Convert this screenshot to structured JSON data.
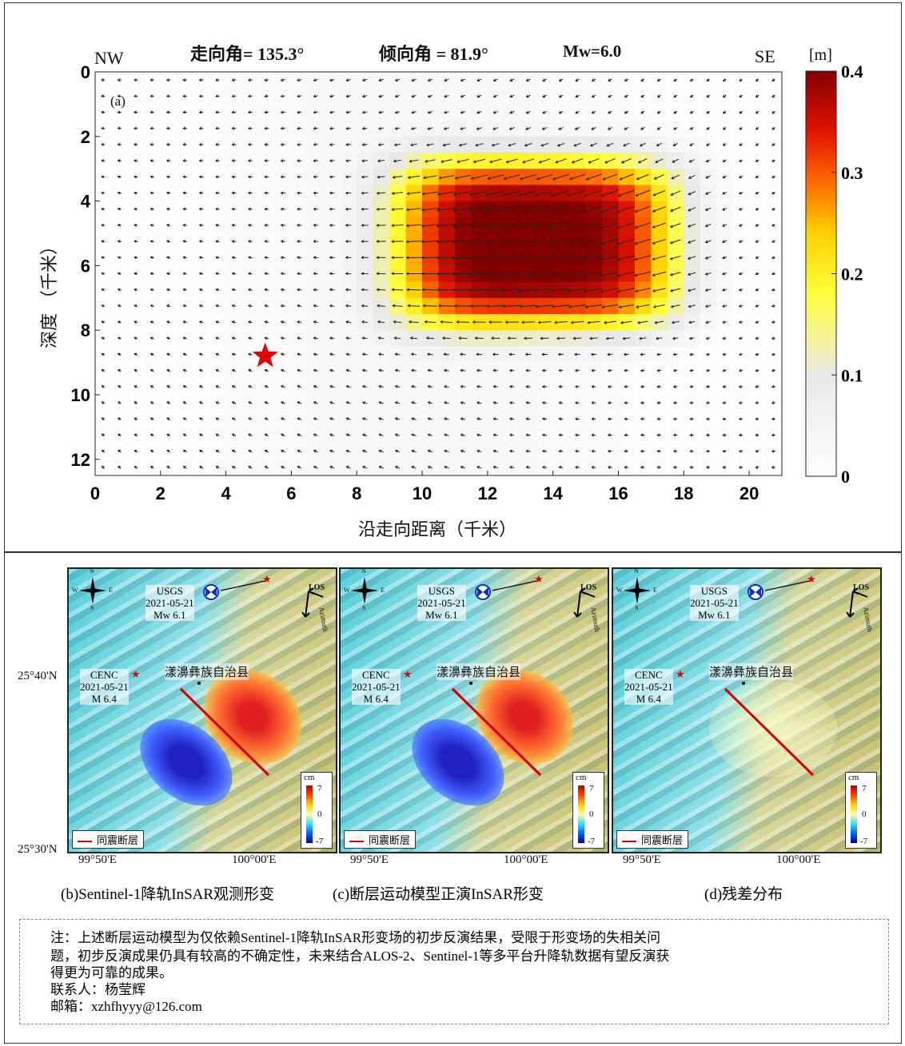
{
  "chart_data": {
    "type": "heatmap",
    "panel_label": "(a)",
    "title_items": [
      "走向角= 135.3°",
      "倾向角 = 81.9°",
      "Mw=6.0"
    ],
    "left_label": "NW",
    "right_label": "SE",
    "xlabel": "沿走向距离（千米）",
    "ylabel": "深度 （千米）",
    "xlim": [
      0,
      21
    ],
    "ylim": [
      12.5,
      0
    ],
    "xticks": [
      "0",
      "2",
      "4",
      "6",
      "8",
      "10",
      "12",
      "14",
      "16",
      "18",
      "20"
    ],
    "yticks": [
      "0",
      "2",
      "4",
      "6",
      "8",
      "10",
      "12"
    ],
    "cell_size_km": 0.5,
    "slip_model": {
      "peak_m": 0.39,
      "center_x_km": 13.5,
      "center_depth_km": 5.3,
      "sigma_x_km": 3.6,
      "sigma_depth_km": 2.2,
      "rake_deg": 190
    },
    "hypocenter": {
      "x_km": 5.2,
      "depth_km": 8.8
    },
    "colorbar": {
      "unit": "[m]",
      "min": 0,
      "max": 0.4,
      "ticks": [
        "0",
        "0.1",
        "0.2",
        "0.3",
        "0.4"
      ]
    }
  },
  "maps": [
    {
      "usgs": [
        "USGS",
        "2021-05-21",
        "Mw 6.1"
      ],
      "cenc": [
        "CENC",
        "2021-05-21",
        "M 6.4"
      ],
      "town": "漾濞彝族自治县",
      "caption": "(b)Sentinel-1降轨InSAR观测形变",
      "type": "obs"
    },
    {
      "usgs": [
        "USGS",
        "2021-05-21",
        "Mw 6.1"
      ],
      "cenc": [
        "CENC",
        "2021-05-21",
        "M 6.4"
      ],
      "town": "漾濞彝族自治县",
      "caption": "(c)断层运动模型正演InSAR形变",
      "type": "model"
    },
    {
      "usgs": [
        "USGS",
        "2021-05-21",
        "Mw 6.1"
      ],
      "cenc": [
        "CENC",
        "2021-05-21",
        "M 6.4"
      ],
      "town": "漾濞彝族自治县",
      "caption": "(d)残差分布",
      "type": "res"
    }
  ],
  "map_common": {
    "compass": [
      "N",
      "S",
      "W",
      "E"
    ],
    "los": "LOS",
    "azimuth": "Azimuth",
    "cb_unit": "cm",
    "cb_ticks": [
      "7",
      "0",
      "-7"
    ],
    "legend": "同震断层",
    "lat_ticks": [
      "25°40'N",
      "25°30'N"
    ],
    "lon_ticks": [
      "99°50'E",
      "100°00'E"
    ]
  },
  "note": {
    "lines": [
      "注：上述断层运动模型为仅依赖Sentinel-1降轨InSAR形变场的初步反演结果，受限于形变场的失相关问",
      "题，初步反演成果仍具有较高的不确定性，未来结合ALOS-2、Sentinel-1等多平台升降轨数据有望反演获",
      "得更为可靠的成果。",
      "联系人：杨莹辉",
      "邮箱：xzhfhyyy@126.com"
    ]
  },
  "colors": {
    "star": "#e00000",
    "fault": "#d00000"
  }
}
